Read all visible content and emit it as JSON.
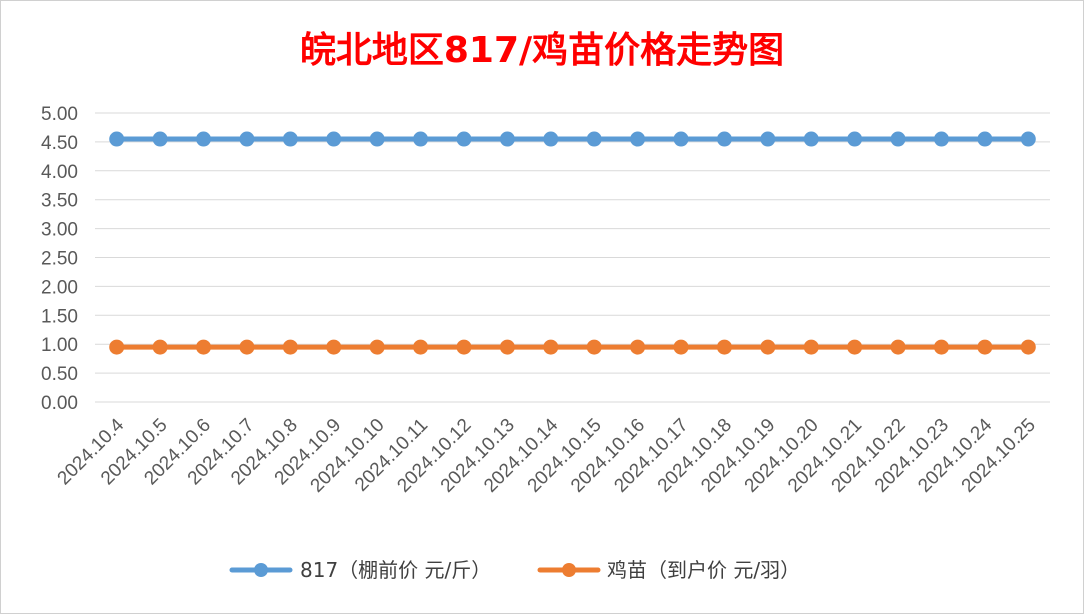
{
  "chart_data": {
    "type": "line",
    "title": "皖北地区817/鸡苗价格走势图",
    "categories": [
      "2024.10.4",
      "2024.10.5",
      "2024.10.6",
      "2024.10.7",
      "2024.10.8",
      "2024.10.9",
      "2024.10.10",
      "2024.10.11",
      "2024.10.12",
      "2024.10.13",
      "2024.10.14",
      "2024.10.15",
      "2024.10.16",
      "2024.10.17",
      "2024.10.18",
      "2024.10.19",
      "2024.10.20",
      "2024.10.21",
      "2024.10.22",
      "2024.10.23",
      "2024.10.24",
      "2024.10.25"
    ],
    "series": [
      {
        "name": "817（棚前价 元/斤）",
        "color": "#5b9bd5",
        "values": [
          4.55,
          4.55,
          4.55,
          4.55,
          4.55,
          4.55,
          4.55,
          4.55,
          4.55,
          4.55,
          4.55,
          4.55,
          4.55,
          4.55,
          4.55,
          4.55,
          4.55,
          4.55,
          4.55,
          4.55,
          4.55,
          4.55
        ]
      },
      {
        "name": "鸡苗（到户价 元/羽）",
        "color": "#ed7d31",
        "values": [
          0.95,
          0.95,
          0.95,
          0.95,
          0.95,
          0.95,
          0.95,
          0.95,
          0.95,
          0.95,
          0.95,
          0.95,
          0.95,
          0.95,
          0.95,
          0.95,
          0.95,
          0.95,
          0.95,
          0.95,
          0.95,
          0.95
        ]
      }
    ],
    "yticks": [
      "0.00",
      "0.50",
      "1.00",
      "1.50",
      "2.00",
      "2.50",
      "3.00",
      "3.50",
      "4.00",
      "4.50",
      "5.00"
    ],
    "ylim": [
      0,
      5
    ],
    "grid": true,
    "legend": "bottom",
    "title_color": "#ff0000"
  }
}
